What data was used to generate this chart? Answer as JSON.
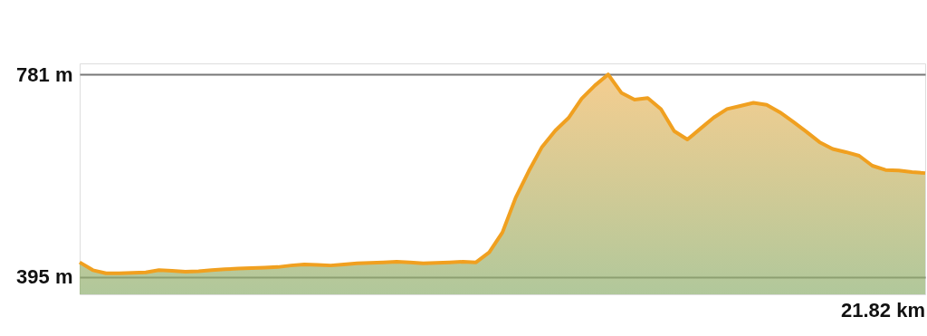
{
  "chart_data": {
    "type": "area",
    "categories": [
      null,
      null,
      null,
      null,
      null,
      null,
      null,
      null,
      null,
      null,
      null,
      null,
      null,
      null,
      null,
      null,
      null,
      null,
      null,
      null,
      null,
      null,
      null,
      null,
      null,
      null,
      null,
      null,
      null,
      null,
      null,
      null,
      null,
      null,
      null,
      null,
      null,
      null,
      null,
      null,
      null,
      null,
      null,
      null,
      null,
      null,
      null,
      null,
      null,
      null,
      null,
      null,
      null,
      null,
      null,
      null,
      null,
      null,
      null,
      null,
      null,
      null,
      null,
      null,
      null
    ],
    "series": [
      {
        "color": "#f0a020",
        "values": [
          423,
          408,
          402,
          402,
          403,
          404,
          408,
          407,
          405,
          406,
          408,
          410,
          411,
          412,
          413,
          414,
          417,
          419,
          418,
          417,
          419,
          421,
          422,
          423,
          424,
          423,
          421,
          422,
          423,
          424,
          423,
          442,
          480,
          546,
          597,
          643,
          674,
          698,
          735,
          760,
          781,
          746,
          733,
          736,
          715,
          673,
          657,
          678,
          699,
          715,
          721,
          727,
          723,
          709,
          691,
          672,
          652,
          639,
          633,
          626,
          607,
          599,
          598,
          595,
          593
        ]
      }
    ],
    "ylim": [
      362,
      802
    ],
    "yticks": [
      {
        "value": 395,
        "label": "395 m"
      },
      {
        "value": 781,
        "label": "781 m"
      }
    ],
    "annotations": [
      "21.82 km"
    ],
    "grid": "y",
    "marker": "none",
    "line_style": "solid"
  }
}
